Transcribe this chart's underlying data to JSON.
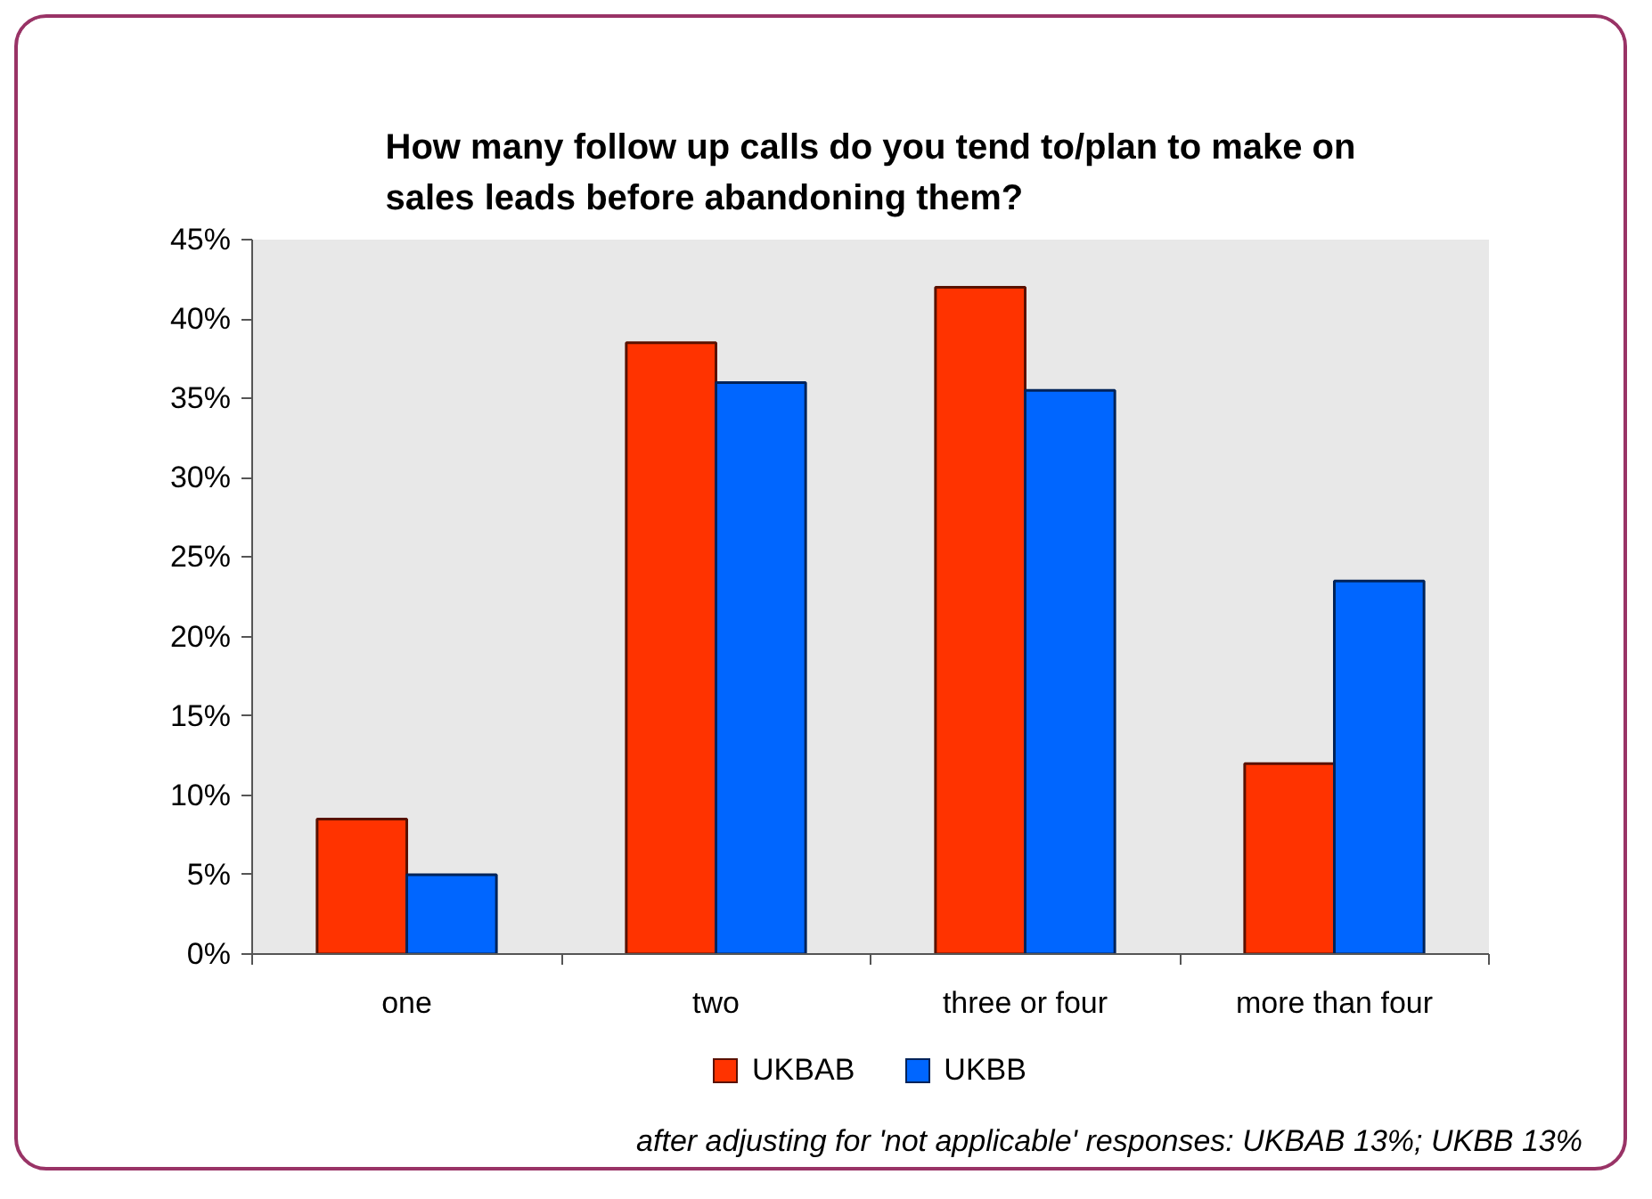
{
  "chart_data": {
    "type": "bar",
    "title": "How many follow up calls do you tend to/plan to make on sales leads before abandoning them?",
    "categories": [
      "one",
      "two",
      "three or four",
      "more than four"
    ],
    "series": [
      {
        "name": "UKBAB",
        "color": "#ff3300",
        "values": [
          8.5,
          38.5,
          42,
          12
        ]
      },
      {
        "name": "UKBB",
        "color": "#0066ff",
        "values": [
          5,
          36,
          35.5,
          23.5
        ]
      }
    ],
    "ylim": [
      0,
      45
    ],
    "yticks": [
      {
        "value": 0,
        "label": "0%"
      },
      {
        "value": 5,
        "label": "5%"
      },
      {
        "value": 10,
        "label": "10%"
      },
      {
        "value": 15,
        "label": "15%"
      },
      {
        "value": 20,
        "label": "20%"
      },
      {
        "value": 25,
        "label": "25%"
      },
      {
        "value": 30,
        "label": "30%"
      },
      {
        "value": 35,
        "label": "35%"
      },
      {
        "value": 40,
        "label": "40%"
      },
      {
        "value": 45,
        "label": "45%"
      }
    ],
    "grid": false,
    "legend": "bottom",
    "annotations": [
      "after adjusting for 'not applicable' responses: UKBAB 13%; UKBB 13%"
    ]
  }
}
